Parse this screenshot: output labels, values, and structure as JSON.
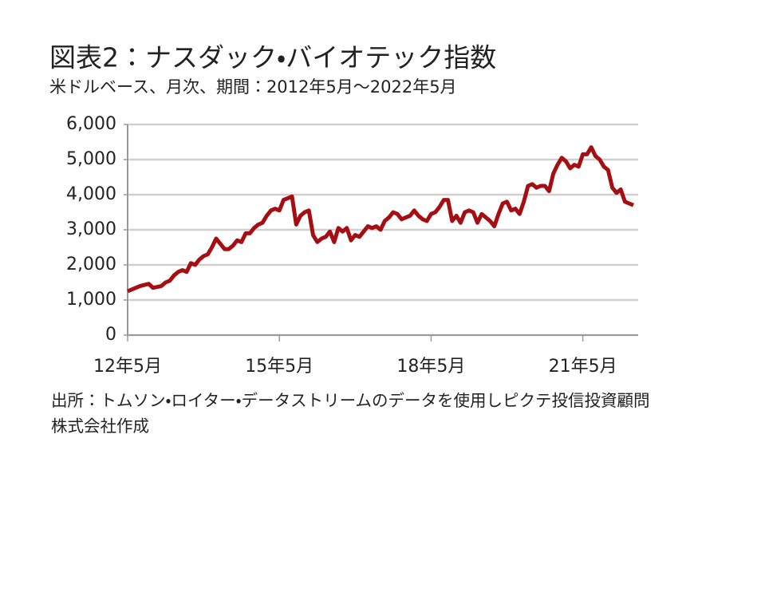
{
  "chart_data": {
    "type": "line",
    "title": "図表2：ナスダック・バイオテック指数",
    "subtitle": "米ドルベース、月次、期間：2012年5月～2022年5月",
    "source": "出所：トムソン・ロイター・データストリームのデータを使用しピクテ投信投資顧問株式会社作成",
    "x": [
      "2012-05",
      "2012-06",
      "2012-07",
      "2012-08",
      "2012-09",
      "2012-10",
      "2012-11",
      "2012-12",
      "2013-01",
      "2013-02",
      "2013-03",
      "2013-04",
      "2013-05",
      "2013-06",
      "2013-07",
      "2013-08",
      "2013-09",
      "2013-10",
      "2013-11",
      "2013-12",
      "2014-01",
      "2014-02",
      "2014-03",
      "2014-04",
      "2014-05",
      "2014-06",
      "2014-07",
      "2014-08",
      "2014-09",
      "2014-10",
      "2014-11",
      "2014-12",
      "2015-01",
      "2015-02",
      "2015-03",
      "2015-04",
      "2015-05",
      "2015-06",
      "2015-07",
      "2015-08",
      "2015-09",
      "2015-10",
      "2015-11",
      "2015-12",
      "2016-01",
      "2016-02",
      "2016-03",
      "2016-04",
      "2016-05",
      "2016-06",
      "2016-07",
      "2016-08",
      "2016-09",
      "2016-10",
      "2016-11",
      "2016-12",
      "2017-01",
      "2017-02",
      "2017-03",
      "2017-04",
      "2017-05",
      "2017-06",
      "2017-07",
      "2017-08",
      "2017-09",
      "2017-10",
      "2017-11",
      "2017-12",
      "2018-01",
      "2018-02",
      "2018-03",
      "2018-04",
      "2018-05",
      "2018-06",
      "2018-07",
      "2018-08",
      "2018-09",
      "2018-10",
      "2018-11",
      "2018-12",
      "2019-01",
      "2019-02",
      "2019-03",
      "2019-04",
      "2019-05",
      "2019-06",
      "2019-07",
      "2019-08",
      "2019-09",
      "2019-10",
      "2019-11",
      "2019-12",
      "2020-01",
      "2020-02",
      "2020-03",
      "2020-04",
      "2020-05",
      "2020-06",
      "2020-07",
      "2020-08",
      "2020-09",
      "2020-10",
      "2020-11",
      "2020-12",
      "2021-01",
      "2021-02",
      "2021-03",
      "2021-04",
      "2021-05",
      "2021-06",
      "2021-07",
      "2021-08",
      "2021-09",
      "2021-10",
      "2021-11",
      "2021-12",
      "2022-01",
      "2022-02",
      "2022-03",
      "2022-04",
      "2022-05"
    ],
    "series": [
      {
        "name": "ナスダック・バイオテック指数",
        "color": "#a50e13",
        "values": [
          1250,
          1300,
          1350,
          1400,
          1430,
          1460,
          1350,
          1370,
          1400,
          1500,
          1550,
          1700,
          1800,
          1850,
          1800,
          2050,
          2000,
          2150,
          2250,
          2300,
          2500,
          2750,
          2600,
          2450,
          2450,
          2550,
          2700,
          2650,
          2900,
          2900,
          3050,
          3150,
          3200,
          3400,
          3550,
          3600,
          3550,
          3850,
          3900,
          3950,
          3150,
          3400,
          3500,
          3550,
          2850,
          2650,
          2750,
          2800,
          2950,
          2650,
          3050,
          2950,
          3050,
          2700,
          2850,
          2800,
          2950,
          3100,
          3050,
          3100,
          3000,
          3250,
          3350,
          3500,
          3450,
          3300,
          3350,
          3400,
          3550,
          3400,
          3300,
          3250,
          3450,
          3500,
          3650,
          3850,
          3850,
          3250,
          3400,
          3200,
          3500,
          3550,
          3500,
          3200,
          3450,
          3350,
          3250,
          3100,
          3450,
          3750,
          3800,
          3550,
          3600,
          3450,
          3800,
          4250,
          4300,
          4200,
          4250,
          4250,
          4100,
          4600,
          4850,
          5050,
          4950,
          4750,
          4850,
          4800,
          5150,
          5150,
          5350,
          5100,
          5000,
          4800,
          4700,
          4200,
          4050,
          4150,
          3800,
          3750,
          3700
        ]
      }
    ],
    "xlim": [
      "2012-05",
      "2022-05"
    ],
    "xticks": [
      {
        "value": "2012-05",
        "label": "12年5月"
      },
      {
        "value": "2015-05",
        "label": "15年5月"
      },
      {
        "value": "2018-05",
        "label": "18年5月"
      },
      {
        "value": "2021-05",
        "label": "21年5月"
      }
    ],
    "ylim": [
      0,
      6000
    ],
    "yticks": [
      0,
      {
        "value": 1000,
        "label": "1,000"
      },
      {
        "value": 2000,
        "label": "2,000"
      },
      {
        "value": 3000,
        "label": "3,000"
      },
      {
        "value": 4000,
        "label": "4,000"
      },
      {
        "value": 5000,
        "label": "5,000"
      },
      {
        "value": 6000,
        "label": "6,000"
      }
    ],
    "grid": true
  }
}
